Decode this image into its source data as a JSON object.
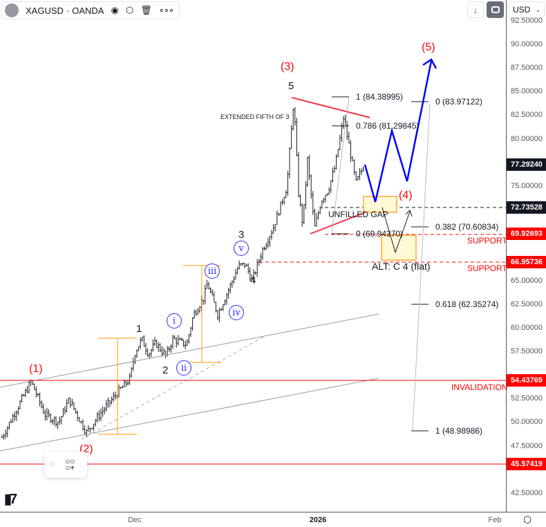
{
  "header": {
    "symbol": "XAGUSD",
    "separator": "·",
    "exchange": "OANDA",
    "icons": [
      "eye-icon",
      "settings-icon",
      "trash-icon",
      "more-icon"
    ]
  },
  "toolbar": {
    "scroll_icon": "↓",
    "fullscreen_icon": "fullscreen-icon",
    "currency": "USD"
  },
  "price_axis": {
    "ticks": [
      "92.50000",
      "90.00000",
      "87.50000",
      "85.00000",
      "82.50000",
      "80.00000",
      "75.00000",
      "65.00000",
      "62.50000",
      "60.00000",
      "57.50000",
      "52.50000",
      "50.00000",
      "47.50000",
      "42.50000"
    ],
    "labels": [
      {
        "value": "77.29240",
        "color": "#131722"
      },
      {
        "value": "72.73528",
        "color": "#131722"
      },
      {
        "value": "69.92693",
        "color": "#ff0000"
      },
      {
        "value": "66.95736",
        "color": "#ff0000"
      },
      {
        "value": "54.43769",
        "color": "#ff0000"
      },
      {
        "value": "45.57419",
        "color": "#ff0000"
      }
    ]
  },
  "time_axis": {
    "labels": [
      "Dec",
      "2026",
      "Feb"
    ]
  },
  "chart_data": {
    "type": "ohlc",
    "price_range": [
      41,
      93
    ],
    "waypoint_prices": [
      48.4,
      50.8,
      54.3,
      50.8,
      50.0,
      52.4,
      48.9,
      50.9,
      53.1,
      54.6,
      57.3,
      58.8,
      57.2,
      58.4,
      57.0,
      58.8,
      58.2,
      61.4,
      63.2,
      64.7,
      61.4,
      63.9,
      66.5,
      66.7,
      65.0,
      68.3,
      70.5,
      72.7,
      74.9,
      84.1,
      74.2,
      70.9,
      77.8,
      70.5,
      73.5,
      74.6,
      77.1,
      82.2,
      79.3,
      75.3,
      77.29
    ]
  },
  "annotations": {
    "wave_primary": [
      "(1)",
      "(2)",
      "(3)",
      "(4)",
      "(5)"
    ],
    "wave_intermediate": [
      "1",
      "2",
      "3",
      "4",
      "5"
    ],
    "wave_minor": [
      "i",
      "ii",
      "iii",
      "iv",
      "v"
    ],
    "extended_fifth": "EXTENDED FIFTH OF 3",
    "unfilled_gap": "UNFILLED GAP",
    "alt": "ALT: C 4 (flat)",
    "support": "SUPPORT",
    "invalidation": "INVALIDATION",
    "fib1": [
      "1 (84.38995)",
      "0.786 (81.29845)",
      "0 (69.94370)"
    ],
    "fib2": [
      "0 (83.97122)",
      "0.382 (70.60834)",
      "0.618 (62.35274)",
      "1 (48.98986)"
    ]
  },
  "colors": {
    "bars": "#131722",
    "blue_path": "#0000ff",
    "red": "#ff0000",
    "orange": "#ff9800",
    "zone": "#fff9d6",
    "trend": "#f23645"
  }
}
